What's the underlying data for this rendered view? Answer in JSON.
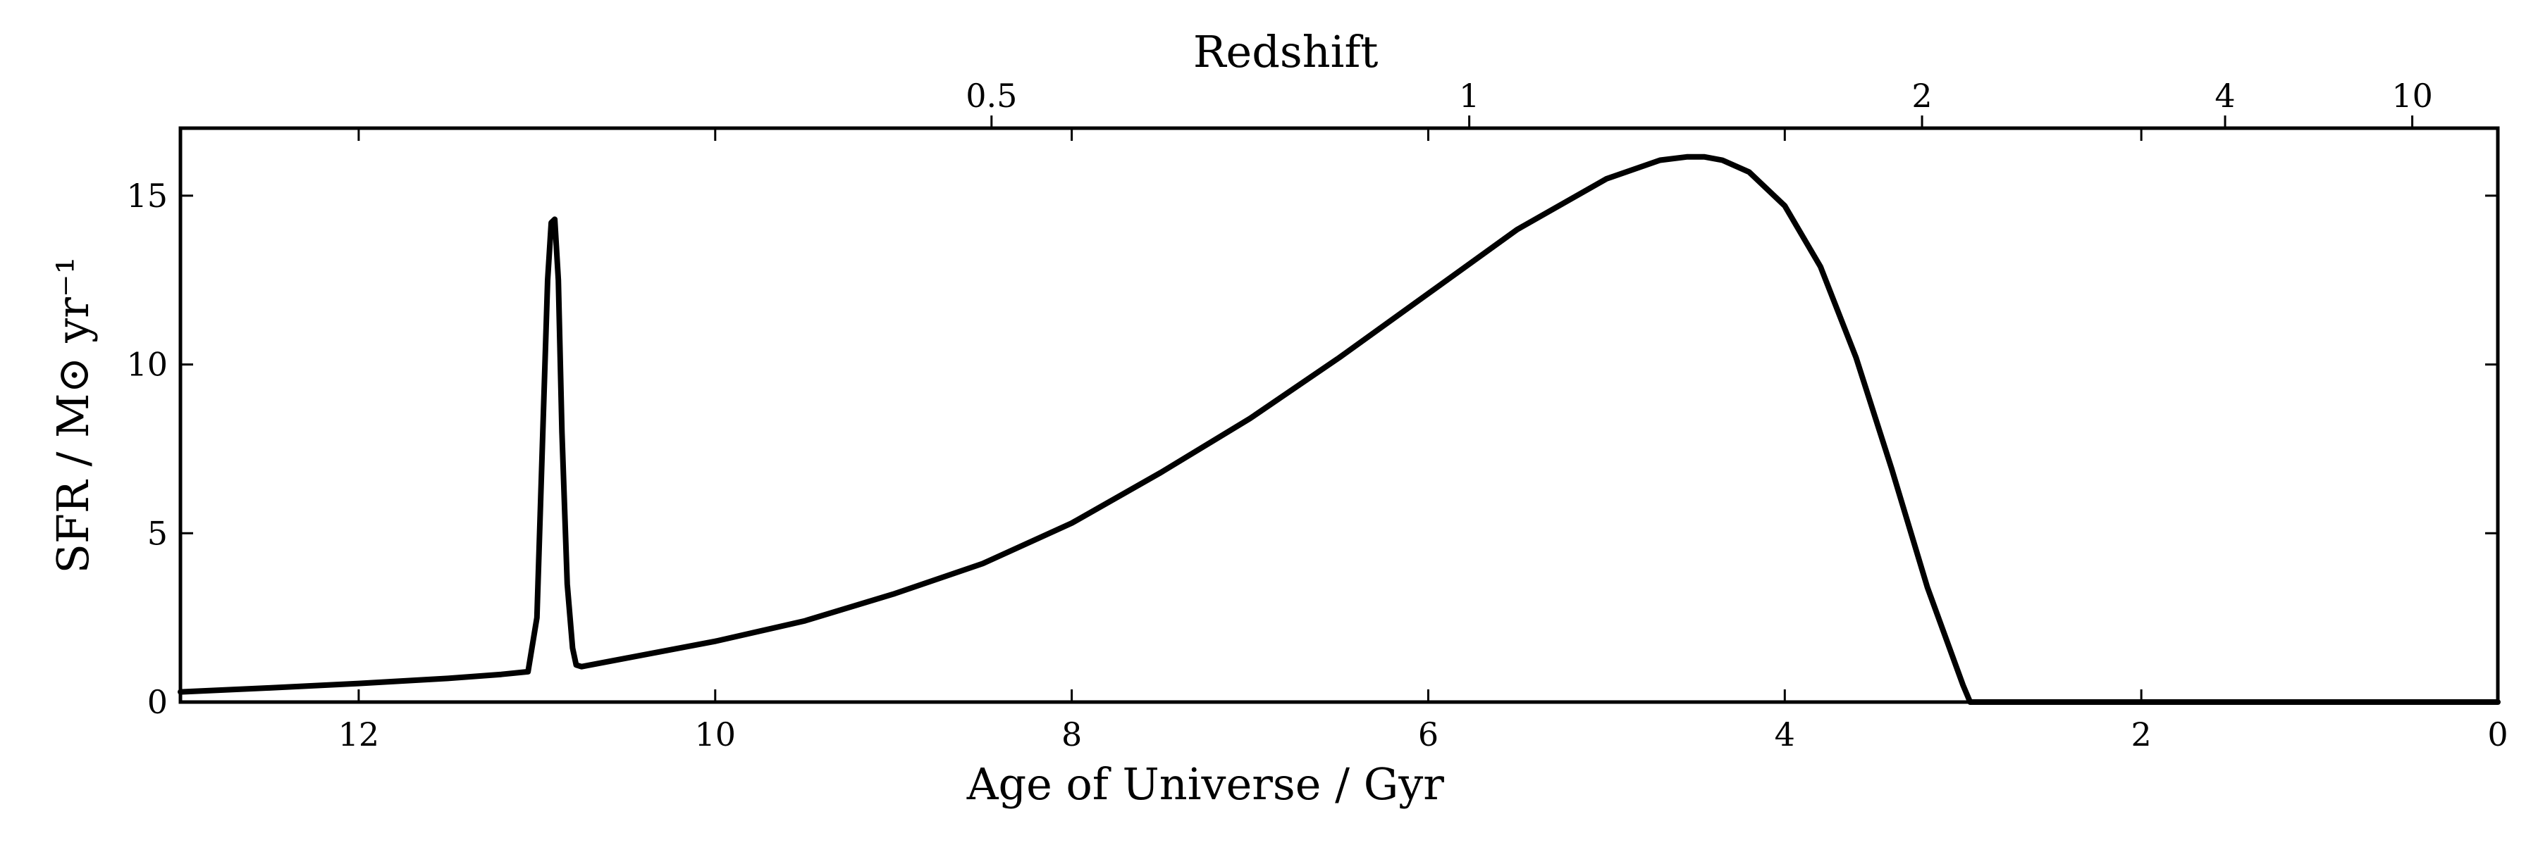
{
  "chart_data": {
    "type": "line",
    "title": "",
    "xlabel": "Age of Universe / Gyr",
    "ylabel": "SFR / M⊙ yr⁻¹",
    "top_axis_label": "Redshift",
    "xlim": [
      13,
      0
    ],
    "ylim": [
      0,
      17
    ],
    "x_ticks": [
      12,
      10,
      8,
      6,
      4,
      2,
      0
    ],
    "y_ticks": [
      0,
      5,
      10,
      15
    ],
    "top_ticks": [
      {
        "label": "0.5",
        "age": 8.45
      },
      {
        "label": "1",
        "age": 5.77
      },
      {
        "label": "2",
        "age": 3.23
      },
      {
        "label": "4",
        "age": 1.53
      },
      {
        "label": "10",
        "age": 0.48
      }
    ],
    "grid": false,
    "legend": "none",
    "color": "#000000",
    "series": [
      {
        "x": [
          13.0,
          12.5,
          12.0,
          11.5,
          11.2,
          11.05,
          11.0,
          10.97,
          10.94,
          10.92,
          10.9,
          10.88,
          10.86,
          10.83,
          10.8,
          10.78,
          10.75,
          10.5,
          10.0,
          9.5,
          9.0,
          8.5,
          8.0,
          7.5,
          7.0,
          6.5,
          6.0,
          5.5,
          5.0,
          4.7,
          4.55,
          4.45,
          4.35,
          4.2,
          4.0,
          3.8,
          3.6,
          3.4,
          3.2,
          3.0,
          2.96,
          2.5,
          2.0,
          1.5,
          1.0,
          0.5,
          0.0
        ],
        "y": [
          0.3,
          0.42,
          0.55,
          0.7,
          0.82,
          0.9,
          2.5,
          7.5,
          12.5,
          14.2,
          14.3,
          12.5,
          8.0,
          3.5,
          1.6,
          1.1,
          1.05,
          1.3,
          1.8,
          2.4,
          3.2,
          4.1,
          5.3,
          6.8,
          8.4,
          10.2,
          12.1,
          14.0,
          15.5,
          16.05,
          16.15,
          16.15,
          16.05,
          15.7,
          14.7,
          12.9,
          10.2,
          6.9,
          3.4,
          0.5,
          0.0,
          0.0,
          0.0,
          0.0,
          0.0,
          0.0,
          0.0
        ]
      }
    ]
  }
}
